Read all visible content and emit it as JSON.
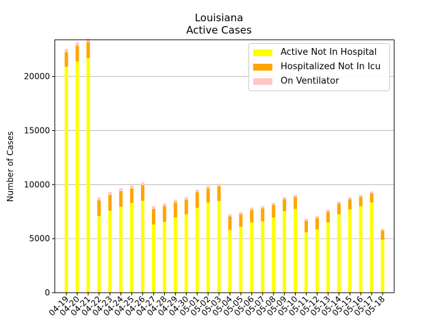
{
  "chart_data": {
    "type": "bar",
    "stacked": true,
    "title": "Louisiana",
    "subtitle": "Active Cases",
    "xlabel": "",
    "ylabel": "Number of Cases",
    "ylim": [
      0,
      23400
    ],
    "yticks": [
      0,
      5000,
      10000,
      15000,
      20000
    ],
    "grid": "horizontal",
    "legend_position": "top-right",
    "categories": [
      "04-19",
      "04-20",
      "04-21",
      "04-22",
      "04-23",
      "04-24",
      "04-25",
      "04-26",
      "04-27",
      "04-28",
      "04-29",
      "04-30",
      "05-01",
      "05-02",
      "05-03",
      "05-04",
      "05-05",
      "05-06",
      "05-07",
      "05-08",
      "05-09",
      "05-10",
      "05-11",
      "05-12",
      "05-13",
      "05-14",
      "05-15",
      "05-16",
      "05-17",
      "05-18"
    ],
    "series": [
      {
        "name": "Active Not In Hospital",
        "color": "#ffff00",
        "values": [
          20900,
          21400,
          21700,
          7100,
          7600,
          7950,
          8300,
          8500,
          6300,
          6550,
          6950,
          7250,
          7850,
          8350,
          8500,
          5800,
          6100,
          6500,
          6600,
          6950,
          7550,
          7750,
          5600,
          5850,
          6500,
          7250,
          7700,
          8000,
          8350,
          4900
        ]
      },
      {
        "name": "Hospitalized Not In Icu",
        "color": "#ffa500",
        "values": [
          1350,
          1450,
          1500,
          1450,
          1450,
          1450,
          1350,
          1450,
          1450,
          1450,
          1400,
          1350,
          1450,
          1300,
          1350,
          1250,
          1150,
          1150,
          1200,
          1150,
          1100,
          1100,
          1050,
          1050,
          1000,
          1000,
          950,
          850,
          850,
          850
        ]
      },
      {
        "name": "On Ventilator",
        "color": "#ffc8c8",
        "values": [
          300,
          300,
          300,
          270,
          270,
          270,
          260,
          250,
          250,
          250,
          250,
          250,
          240,
          230,
          230,
          220,
          210,
          210,
          210,
          200,
          200,
          200,
          200,
          190,
          190,
          180,
          180,
          180,
          170,
          160
        ]
      }
    ]
  }
}
